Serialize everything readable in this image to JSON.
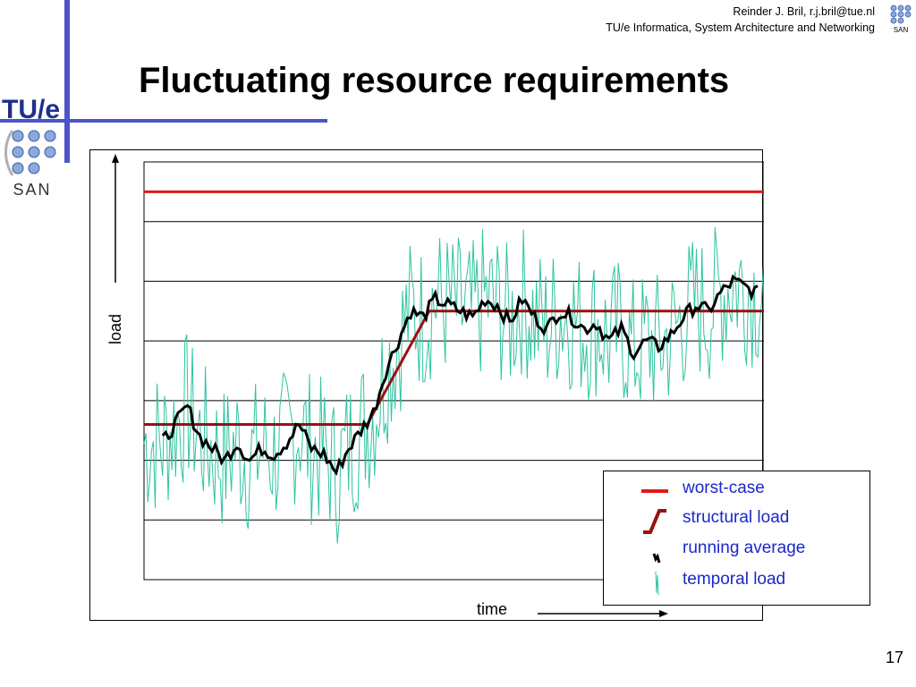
{
  "header": {
    "author_line": "Reinder J. Bril, r.j.bril@tue.nl",
    "affiliation_line": "TU/e Informatica, System Architecture and Networking"
  },
  "slide": {
    "title": "Fluctuating resource requirements",
    "page_number": "17"
  },
  "logos": {
    "tue_text": "TU/e",
    "san_text": "SAN",
    "san_small_text": "SAN"
  },
  "colors": {
    "accent_bar": "#4b54c8",
    "worst_case": "#e01818",
    "structural": "#9b1010",
    "running_average": "#000000",
    "temporal": "#2ec4a0",
    "legend_text": "#1a28c8"
  },
  "chart_data": {
    "type": "line",
    "xlabel": "time",
    "ylabel": "load",
    "grid": true,
    "ylim": [
      0,
      7
    ],
    "xlim": [
      0,
      100
    ],
    "legend_position": "bottom-right",
    "series": [
      {
        "name": "worst-case",
        "x": [
          0,
          100
        ],
        "values": [
          6.5,
          6.5
        ]
      },
      {
        "name": "structural load",
        "x": [
          0,
          36,
          46,
          100
        ],
        "values": [
          2.6,
          2.6,
          4.5,
          4.5
        ]
      },
      {
        "name": "running average",
        "x": [
          3,
          5,
          7,
          9,
          11,
          13,
          15,
          17,
          19,
          21,
          23,
          25,
          27,
          29,
          31,
          33,
          35,
          37,
          39,
          41,
          43,
          45,
          47,
          49,
          51,
          53,
          55,
          57,
          59,
          61,
          63,
          65,
          67,
          69,
          71,
          73,
          75,
          77,
          79,
          81,
          83,
          85,
          87,
          89,
          91,
          93,
          95,
          97,
          99
        ],
        "values": [
          2.3,
          2.6,
          2.9,
          2.4,
          2.2,
          2.0,
          2.3,
          2.0,
          2.2,
          2.1,
          2.3,
          2.6,
          2.2,
          2.1,
          1.8,
          2.2,
          2.5,
          2.8,
          3.5,
          4.0,
          4.5,
          4.4,
          4.7,
          4.6,
          4.5,
          4.4,
          4.7,
          4.6,
          4.3,
          4.7,
          4.4,
          4.2,
          4.5,
          4.4,
          4.2,
          4.3,
          4.0,
          4.2,
          3.8,
          4.0,
          3.9,
          4.1,
          4.4,
          4.6,
          4.5,
          4.8,
          5.0,
          4.9,
          4.8
        ]
      },
      {
        "name": "temporal load",
        "amplitude": 1.3,
        "note_values_follow": "running average"
      }
    ]
  },
  "legend": {
    "items": [
      {
        "label": "worst-case"
      },
      {
        "label": "structural load"
      },
      {
        "label": "running average"
      },
      {
        "label": "temporal load"
      }
    ]
  }
}
